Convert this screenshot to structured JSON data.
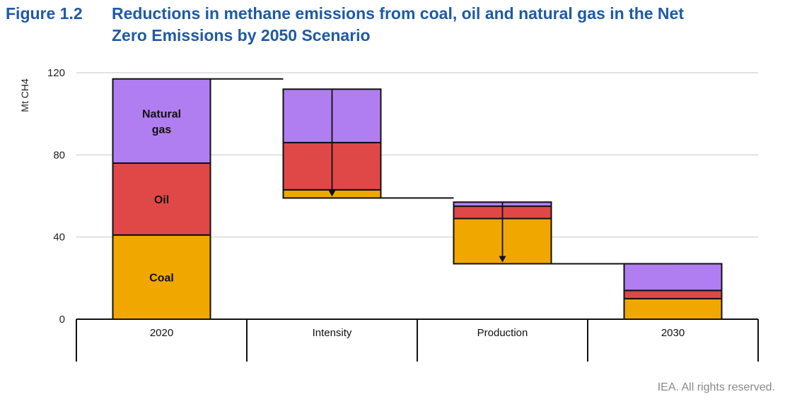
{
  "figure": {
    "number": "Figure 1.2",
    "title_line1": "Reductions in methane emissions from coal, oil and natural gas in the Net",
    "title_line2": "Zero Emissions by 2050 Scenario",
    "credit": "IEA. All rights reserved."
  },
  "colors": {
    "coal": "#f0a800",
    "oil": "#e04848",
    "natural_gas": "#b07ef0",
    "title": "#1f5aa6",
    "grid": "#d9d9d9"
  },
  "chart_data": {
    "type": "bar",
    "subtype": "waterfall-stacked",
    "ylabel": "Mt CH4",
    "ylim": [
      0,
      120
    ],
    "yticks": [
      0,
      40,
      80,
      120
    ],
    "categories": [
      "2020",
      "Intensity",
      "Production",
      "2030"
    ],
    "grid": true,
    "series": [
      {
        "name": "Coal",
        "key": "coal",
        "values": [
          41,
          4,
          22,
          10
        ]
      },
      {
        "name": "Oil",
        "key": "oil",
        "values": [
          35,
          23,
          6,
          4
        ]
      },
      {
        "name": "Natural gas",
        "key": "natural_gas",
        "values": [
          41,
          26,
          2,
          13
        ]
      }
    ],
    "bar_base": [
      0,
      59,
      27,
      0
    ],
    "bar_stack_order": [
      [
        "coal",
        "oil",
        "natural_gas"
      ],
      [
        "coal",
        "oil",
        "natural_gas"
      ],
      [
        "coal",
        "oil",
        "natural_gas"
      ],
      [
        "coal",
        "oil",
        "natural_gas"
      ]
    ],
    "reduction_arrows": [
      true,
      false,
      false,
      false
    ],
    "inline_labels": [
      {
        "category": "2020",
        "series": "natural_gas",
        "lines": [
          "Natural",
          "gas"
        ]
      },
      {
        "category": "2020",
        "series": "oil",
        "lines": [
          "Oil"
        ]
      },
      {
        "category": "2020",
        "series": "coal",
        "lines": [
          "Coal"
        ]
      }
    ]
  }
}
